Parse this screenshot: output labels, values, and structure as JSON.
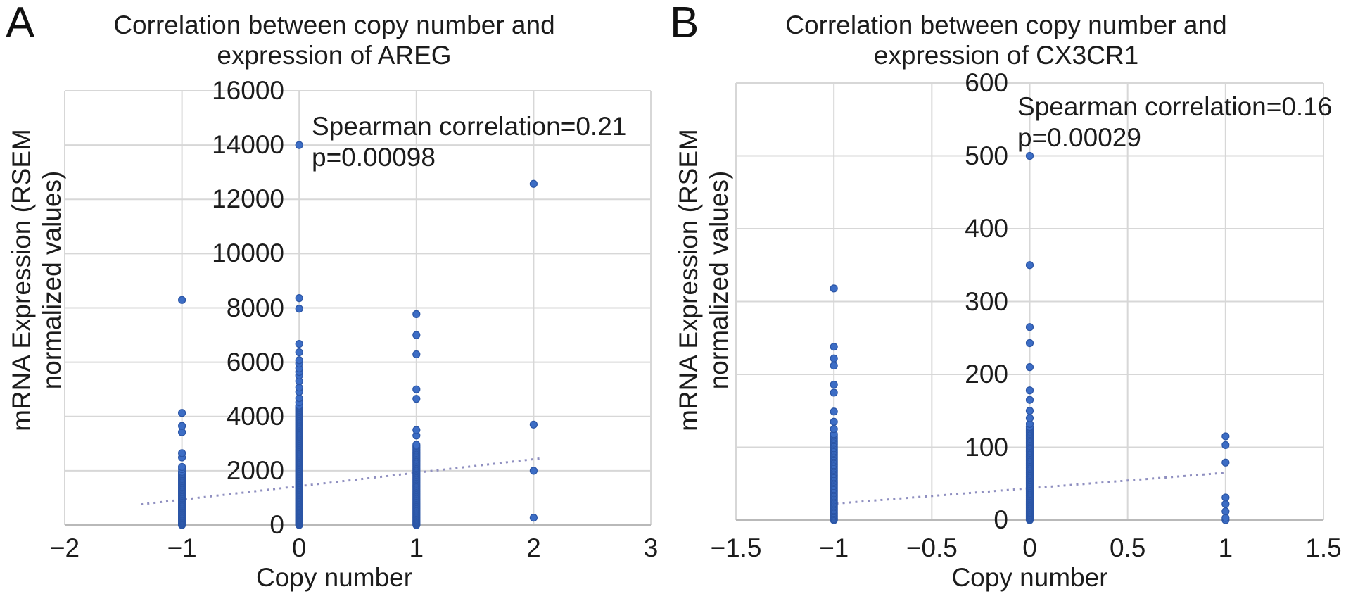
{
  "style": {
    "background": "#ffffff",
    "point_color": "#3c6dc5",
    "point_edge_color": "#2b55a5",
    "trend_color": "#8f8fc0",
    "gridline_color": "#d7d7d7",
    "axis_line_color": "#b9b9b9",
    "text_color": "#1c1c1c"
  },
  "chart_data": [
    {
      "type": "scatter",
      "panel_label": "A",
      "title": "Correlation between copy number and expression of AREG",
      "title_lines": [
        "Correlation between copy number and",
        "expression of AREG"
      ],
      "annotation_lines": [
        "Spearman correlation=0.21",
        "p=0.00098"
      ],
      "spearman_correlation": 0.21,
      "p_value": 0.00098,
      "xaxis": {
        "label": "Copy number",
        "lim": [
          -2,
          3
        ],
        "tick_values": [
          -2,
          -1,
          0,
          1,
          2,
          3
        ],
        "tick_labels": [
          "−2",
          "−1",
          "0",
          "1",
          "2",
          "3"
        ]
      },
      "yaxis": {
        "label": "mRNA Expression (RSEM normalized values)",
        "label_lines": [
          "mRNA Expression (RSEM",
          "normalized values)"
        ],
        "lim": [
          0,
          16000
        ],
        "tick_values": [
          0,
          2000,
          4000,
          6000,
          8000,
          10000,
          12000,
          14000,
          16000
        ],
        "tick_labels": [
          "0",
          "2000",
          "4000",
          "6000",
          "8000",
          "10000",
          "12000",
          "14000",
          "16000"
        ]
      },
      "grid": true,
      "columns": [
        {
          "x": -1,
          "dense": {
            "min": 0,
            "max": 1960,
            "count": 50
          },
          "points": [
            2060,
            2140,
            2490,
            2650,
            3420,
            3650,
            4130,
            8290
          ]
        },
        {
          "x": 0,
          "dense": {
            "min": 0,
            "max": 4400,
            "count": 120
          },
          "points": [
            4520,
            4675,
            4910,
            5065,
            5300,
            5510,
            5640,
            5770,
            5950,
            6075,
            6365,
            6675,
            7970,
            8360,
            14000
          ]
        },
        {
          "x": 1,
          "dense": {
            "min": 0,
            "max": 2960,
            "count": 75
          },
          "points": [
            3300,
            3500,
            4650,
            5000,
            6290,
            7000,
            7770
          ]
        },
        {
          "x": 2,
          "dense": null,
          "points": [
            270,
            2000,
            3700,
            12570
          ]
        }
      ],
      "trend": {
        "x": [
          -1.35,
          2.07
        ],
        "y": [
          760,
          2460
        ],
        "style": "dotted"
      }
    },
    {
      "type": "scatter",
      "panel_label": "B",
      "title": "Correlation between copy number and expression of CX3CR1",
      "title_lines": [
        "Correlation between copy number and",
        "expression of CX3CR1"
      ],
      "annotation_lines": [
        "Spearman correlation=0.16",
        "p=0.00029"
      ],
      "spearman_correlation": 0.16,
      "p_value": 0.00029,
      "xaxis": {
        "label": "Copy number",
        "lim": [
          -1.5,
          1.5
        ],
        "tick_values": [
          -1.5,
          -1,
          -0.5,
          0,
          0.5,
          1,
          1.5
        ],
        "tick_labels": [
          "−1.5",
          "−1",
          "−0.5",
          "0",
          "0.5",
          "1",
          "1.5"
        ]
      },
      "yaxis": {
        "label": "mRNA Expression (RSEM normalized values)",
        "label_lines": [
          "mRNA Expression (RSEM",
          "normalized values)"
        ],
        "lim": [
          0,
          600
        ],
        "tick_values": [
          0,
          100,
          200,
          300,
          400,
          500,
          600
        ],
        "tick_labels": [
          "0",
          "100",
          "200",
          "300",
          "400",
          "500",
          "600"
        ]
      },
      "grid": true,
      "columns": [
        {
          "x": -1,
          "dense": {
            "min": 0,
            "max": 118,
            "count": 60
          },
          "points": [
            125,
            135,
            149,
            175,
            186,
            212,
            222,
            238,
            318
          ]
        },
        {
          "x": 0,
          "dense": {
            "min": 0,
            "max": 128,
            "count": 85
          },
          "points": [
            132,
            140,
            150,
            165,
            178,
            210,
            243,
            265,
            350,
            500
          ]
        },
        {
          "x": 1,
          "dense": null,
          "points": [
            0,
            3,
            12,
            22,
            31,
            79,
            103,
            115
          ]
        }
      ],
      "trend": {
        "x": [
          -1.02,
          1.0
        ],
        "y": [
          22,
          65
        ],
        "style": "dotted"
      }
    }
  ]
}
